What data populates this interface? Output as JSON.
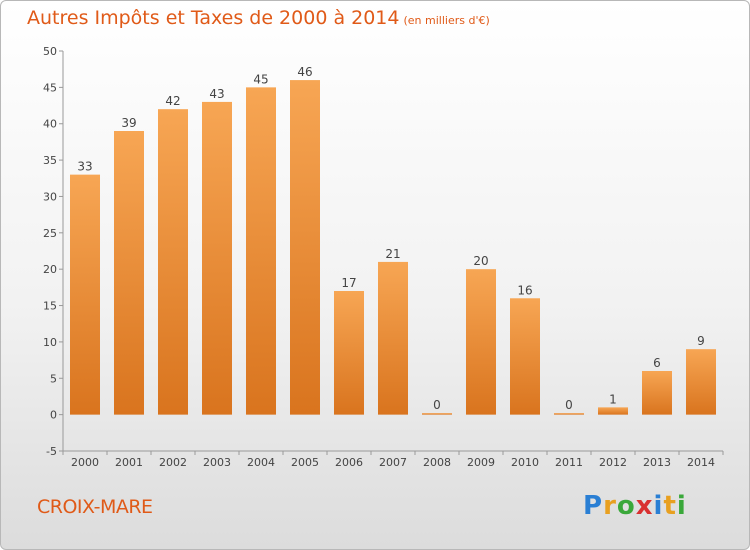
{
  "header": {
    "title": "Autres Impôts et Taxes de 2000 à 2014",
    "subtitle": "(en milliers d'€)"
  },
  "footer": {
    "commune": "CROIX-MARE",
    "logo_text": "Proxiti"
  },
  "colors": {
    "title": "#e05a18",
    "bar_light": "#f7a654",
    "bar_dark": "#d9741e"
  },
  "chart_data": {
    "type": "bar",
    "categories": [
      "2000",
      "2001",
      "2002",
      "2003",
      "2004",
      "2005",
      "2006",
      "2007",
      "2008",
      "2009",
      "2010",
      "2011",
      "2012",
      "2013",
      "2014"
    ],
    "values": [
      33,
      39,
      42,
      43,
      45,
      46,
      17,
      21,
      0,
      20,
      16,
      0,
      1,
      6,
      9
    ],
    "data_labels": [
      "33",
      "39",
      "42",
      "43",
      "45",
      "46",
      "17",
      "21",
      "0",
      "20",
      "16",
      "0",
      "1",
      "6",
      "9"
    ],
    "ylim": [
      -5,
      50
    ],
    "yticks": [
      -5,
      0,
      5,
      10,
      15,
      20,
      25,
      30,
      35,
      40,
      45,
      50
    ],
    "grid": false,
    "title": "Autres Impôts et Taxes de 2000 à 2014",
    "xlabel": "",
    "ylabel": ""
  }
}
